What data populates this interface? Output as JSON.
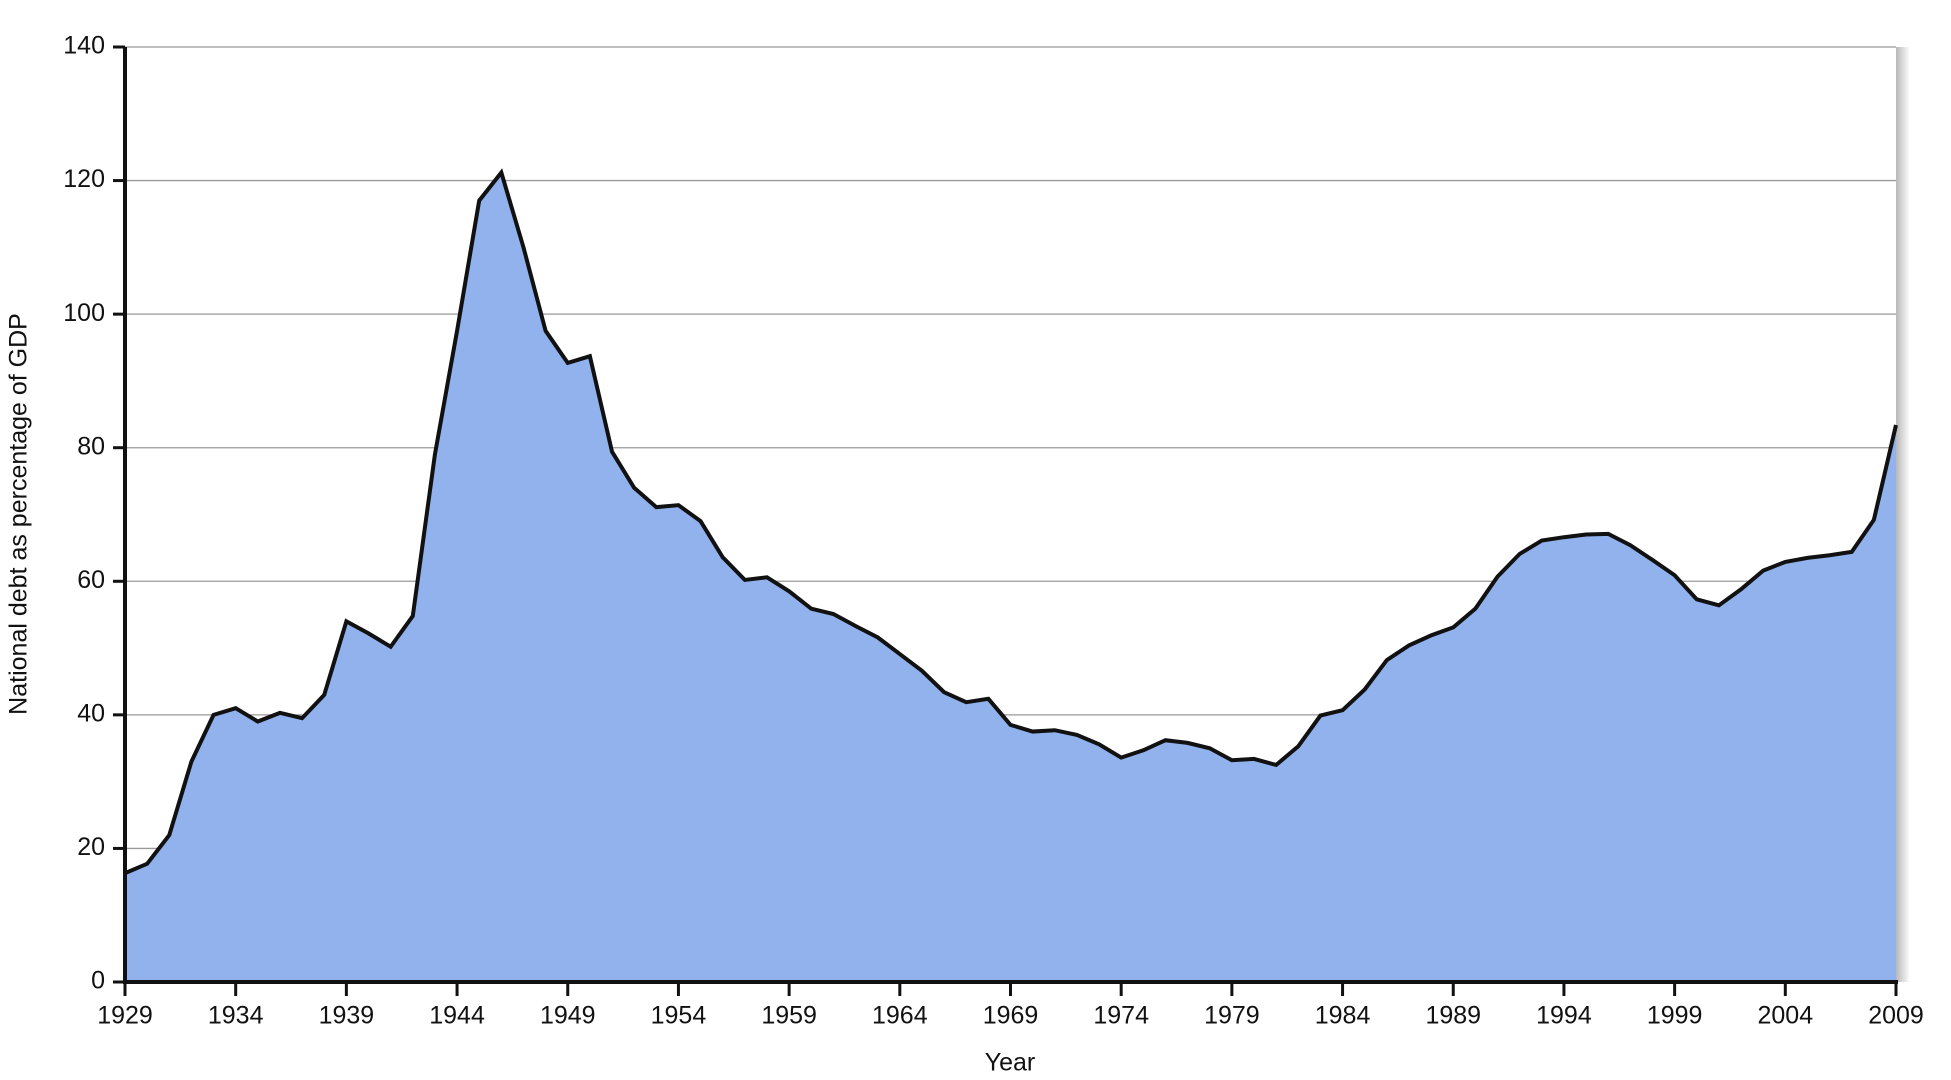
{
  "chart_data": {
    "type": "area",
    "x_label": "Year",
    "y_label": "National debt as percentage of GDP",
    "x": [
      1929,
      1930,
      1931,
      1932,
      1933,
      1934,
      1935,
      1936,
      1937,
      1938,
      1939,
      1940,
      1941,
      1942,
      1943,
      1944,
      1945,
      1946,
      1947,
      1948,
      1949,
      1950,
      1951,
      1952,
      1953,
      1954,
      1955,
      1956,
      1957,
      1958,
      1959,
      1960,
      1961,
      1962,
      1963,
      1964,
      1965,
      1966,
      1967,
      1968,
      1969,
      1970,
      1971,
      1972,
      1973,
      1974,
      1975,
      1976,
      1977,
      1978,
      1979,
      1980,
      1981,
      1982,
      1983,
      1984,
      1985,
      1986,
      1987,
      1988,
      1989,
      1990,
      1991,
      1992,
      1993,
      1994,
      1995,
      1996,
      1997,
      1998,
      1999,
      2000,
      2001,
      2002,
      2003,
      2004,
      2005,
      2006,
      2007,
      2008,
      2009
    ],
    "values": [
      16.3,
      17.7,
      22,
      33,
      40,
      41,
      39,
      40.3,
      39.5,
      43,
      54,
      52.2,
      50.2,
      54.8,
      79,
      97.5,
      117,
      121.2,
      110,
      97.5,
      92.7,
      93.7,
      79.4,
      74,
      71.1,
      71.4,
      69,
      63.6,
      60.2,
      60.6,
      58.5,
      55.9,
      55.1,
      53.3,
      51.6,
      49.1,
      46.6,
      43.4,
      41.9,
      42.4,
      38.5,
      37.5,
      37.7,
      37.0,
      35.6,
      33.6,
      34.7,
      36.2,
      35.8,
      35.0,
      33.2,
      33.4,
      32.5,
      35.3,
      39.9,
      40.7,
      43.8,
      48.2,
      50.4,
      51.9,
      53.1,
      55.9,
      60.7,
      64.1,
      66.1,
      66.6,
      67.0,
      67.1,
      65.4,
      63.2,
      60.9,
      57.3,
      56.4,
      58.8,
      61.6,
      62.9,
      63.5,
      63.9,
      64.4,
      69.2,
      83.4
    ],
    "color": "#92b2ee",
    "line_color": "#111111",
    "xlim": [
      1929,
      2009
    ],
    "xticks": [
      1929,
      1934,
      1939,
      1944,
      1949,
      1954,
      1959,
      1964,
      1969,
      1974,
      1979,
      1984,
      1989,
      1994,
      1999,
      2004,
      2009
    ],
    "ylim": [
      0,
      140
    ],
    "yticks": [
      0,
      20,
      40,
      60,
      80,
      100,
      120,
      140
    ],
    "grid": true
  }
}
